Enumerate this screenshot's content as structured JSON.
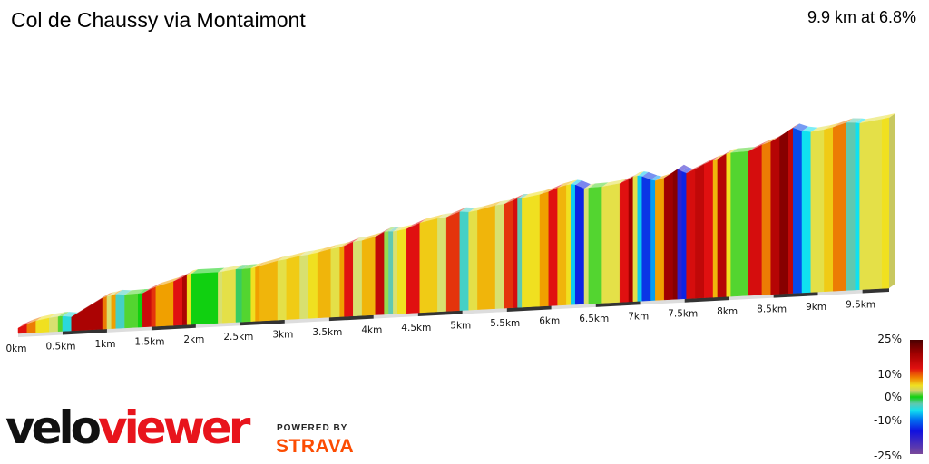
{
  "header": {
    "title": "Col de Chaussy via Montaimont",
    "summary": "9.9 km at 6.8%"
  },
  "chart_data": {
    "type": "area",
    "subtype": "3d-gradient-profile",
    "title": "Col de Chaussy via Montaimont",
    "total_distance_km": 9.9,
    "average_gradient_pct": 6.8,
    "x_ticks": [
      "0km",
      "0.5km",
      "1km",
      "1.5km",
      "2km",
      "2.5km",
      "3km",
      "3.5km",
      "4km",
      "4.5km",
      "5km",
      "5.5km",
      "6km",
      "6.5km",
      "7km",
      "7.5km",
      "8km",
      "8.5km",
      "9km",
      "9.5km"
    ],
    "segments": [
      [
        0.1,
        12
      ],
      [
        0.1,
        9
      ],
      [
        0.15,
        5
      ],
      [
        0.1,
        3
      ],
      [
        0.05,
        1
      ],
      [
        0.1,
        -4
      ],
      [
        0.35,
        17
      ],
      [
        0.05,
        9
      ],
      [
        0.05,
        3
      ],
      [
        0.05,
        8
      ],
      [
        0.1,
        -3
      ],
      [
        0.15,
        1
      ],
      [
        0.05,
        0
      ],
      [
        0.1,
        14
      ],
      [
        0.05,
        11
      ],
      [
        0.2,
        8
      ],
      [
        0.1,
        12
      ],
      [
        0.05,
        17
      ],
      [
        0.05,
        5
      ],
      [
        0.3,
        0
      ],
      [
        0.05,
        3
      ],
      [
        0.15,
        4
      ],
      [
        0.07,
        -1
      ],
      [
        0.1,
        1
      ],
      [
        0.05,
        5
      ],
      [
        0.05,
        8
      ],
      [
        0.2,
        7
      ],
      [
        0.1,
        4
      ],
      [
        0.15,
        6
      ],
      [
        0.1,
        3
      ],
      [
        0.1,
        5
      ],
      [
        0.15,
        7
      ],
      [
        0.1,
        4
      ],
      [
        0.05,
        8
      ],
      [
        0.1,
        12
      ],
      [
        0.1,
        3
      ],
      [
        0.15,
        7
      ],
      [
        0.1,
        15
      ],
      [
        0.05,
        2
      ],
      [
        0.05,
        -2
      ],
      [
        0.05,
        3
      ],
      [
        0.1,
        5
      ],
      [
        0.15,
        12
      ],
      [
        0.2,
        6
      ],
      [
        0.1,
        3
      ],
      [
        0.15,
        11
      ],
      [
        0.1,
        -3
      ],
      [
        0.1,
        4
      ],
      [
        0.2,
        7
      ],
      [
        0.1,
        3
      ],
      [
        0.1,
        11
      ],
      [
        0.05,
        13
      ],
      [
        0.05,
        -2
      ],
      [
        0.2,
        5
      ],
      [
        0.1,
        8
      ],
      [
        0.1,
        12
      ],
      [
        0.1,
        7
      ],
      [
        0.05,
        5
      ],
      [
        0.05,
        -6
      ],
      [
        0.1,
        -14
      ],
      [
        0.05,
        3
      ],
      [
        0.15,
        1
      ],
      [
        0.2,
        4
      ],
      [
        0.1,
        12
      ],
      [
        0.05,
        18
      ],
      [
        0.05,
        4
      ],
      [
        0.05,
        -6
      ],
      [
        0.1,
        -13
      ],
      [
        0.05,
        -8
      ],
      [
        0.1,
        8
      ],
      [
        0.1,
        18
      ],
      [
        0.05,
        20
      ],
      [
        0.05,
        -18
      ],
      [
        0.05,
        -14
      ],
      [
        0.1,
        13
      ],
      [
        0.1,
        15
      ],
      [
        0.1,
        12
      ],
      [
        0.05,
        7
      ],
      [
        0.1,
        16
      ],
      [
        0.05,
        5
      ],
      [
        0.2,
        1
      ],
      [
        0.15,
        13
      ],
      [
        0.1,
        9
      ],
      [
        0.1,
        16
      ],
      [
        0.1,
        20
      ],
      [
        0.05,
        15
      ],
      [
        0.1,
        -12
      ],
      [
        0.1,
        -5
      ],
      [
        0.15,
        4
      ],
      [
        0.1,
        6
      ],
      [
        0.15,
        9
      ],
      [
        0.1,
        -2
      ],
      [
        0.05,
        -5
      ],
      [
        0.25,
        4
      ],
      [
        0.08,
        5
      ]
    ],
    "segment_fields": [
      "length_km",
      "gradient_pct"
    ],
    "legend": {
      "ticks": [
        "25%",
        "10%",
        "0%",
        "-10%",
        "-25%"
      ],
      "range": [
        -25,
        25
      ],
      "placement": "bottom-right"
    },
    "gradient_colors": {
      "-25": "#7a4a9a",
      "-15": "#1010e0",
      "-10": "#0070f0",
      "-5": "#10e0f0",
      "-2": "#60c8b0",
      "0": "#10d010",
      "3": "#d8e070",
      "5": "#f0e020",
      "8": "#f0a000",
      "12": "#e01010",
      "18": "#a00000",
      "25": "#4a0000"
    }
  },
  "branding": {
    "logo_part1": "velo",
    "logo_part2": "viewer",
    "powered_by": "POWERED BY",
    "strava": "STRAVA"
  }
}
